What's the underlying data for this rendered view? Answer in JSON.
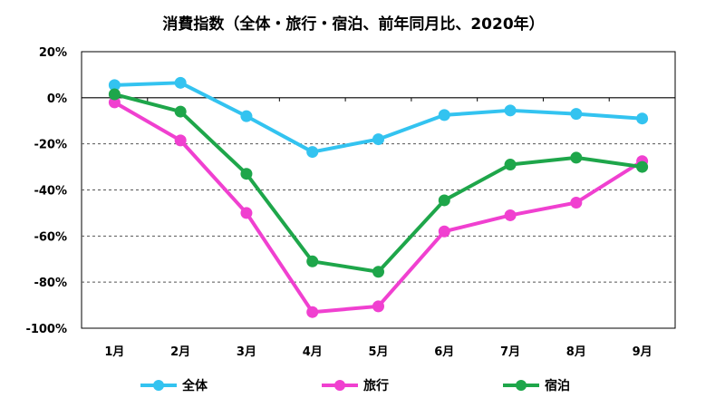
{
  "chart_data": {
    "type": "line",
    "title": "消費指数（全体・旅行・宿泊、前年同月比、2020年）",
    "categories": [
      "1月",
      "2月",
      "3月",
      "4月",
      "5月",
      "6月",
      "7月",
      "8月",
      "9月"
    ],
    "y_ticks": [
      "20%",
      "0%",
      "-20%",
      "-40%",
      "-60%",
      "-80%",
      "-100%"
    ],
    "ylim": [
      -100,
      20
    ],
    "ylabel": "",
    "xlabel": "",
    "grid": "dashed horizontal",
    "legend_position": "bottom",
    "series": [
      {
        "name": "全体",
        "color": "#33C3F0",
        "values": [
          5.5,
          6.5,
          -8,
          -23.5,
          -18,
          -7.5,
          -5.5,
          -7,
          -9
        ]
      },
      {
        "name": "旅行",
        "color": "#F040D0",
        "values": [
          -2,
          -18.5,
          -50,
          -93,
          -90.5,
          -58,
          -51,
          -45.5,
          -27.5
        ]
      },
      {
        "name": "宿泊",
        "color": "#1EA64A",
        "values": [
          1.5,
          -6,
          -33,
          -71,
          -75.5,
          -44.5,
          -29,
          -26,
          -30
        ]
      }
    ]
  }
}
